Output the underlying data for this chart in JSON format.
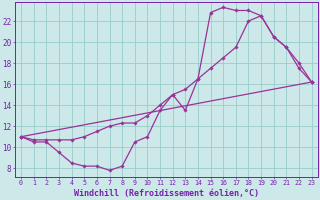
{
  "bg_color": "#cce8e8",
  "grid_color": "#99cccc",
  "line_color": "#993399",
  "marker_color": "#993399",
  "xlabel": "Windchill (Refroidissement éolien,°C)",
  "ylabel_ticks": [
    8,
    10,
    12,
    14,
    16,
    18,
    20,
    22
  ],
  "xlim": [
    -0.5,
    23.5
  ],
  "ylim": [
    7.2,
    23.8
  ],
  "line1_x": [
    0,
    1,
    2,
    3,
    4,
    5,
    6,
    7,
    8,
    9,
    10,
    11,
    12,
    13,
    14,
    15,
    16,
    17,
    18,
    19,
    20,
    21,
    22,
    23
  ],
  "line1_y": [
    11.0,
    10.5,
    10.5,
    9.5,
    8.5,
    8.2,
    8.2,
    7.8,
    8.2,
    10.5,
    11.0,
    13.5,
    15.0,
    13.5,
    16.5,
    22.8,
    23.3,
    23.0,
    23.0,
    22.5,
    20.5,
    19.5,
    17.5,
    16.2
  ],
  "line2_x": [
    0,
    1,
    2,
    3,
    4,
    5,
    6,
    7,
    8,
    9,
    10,
    11,
    12,
    13,
    14,
    15,
    16,
    17,
    18,
    19,
    20,
    21,
    22,
    23
  ],
  "line2_y": [
    11.0,
    10.7,
    10.7,
    10.7,
    10.7,
    11.0,
    11.5,
    12.0,
    12.3,
    12.3,
    13.0,
    14.0,
    15.0,
    15.5,
    16.5,
    17.5,
    18.5,
    19.5,
    22.0,
    22.5,
    20.5,
    19.5,
    18.0,
    16.2
  ],
  "line3_x": [
    0,
    23
  ],
  "line3_y": [
    11.0,
    16.2
  ],
  "xtick_labels": [
    "0",
    "1",
    "2",
    "3",
    "4",
    "5",
    "6",
    "7",
    "8",
    "9",
    "10",
    "11",
    "12",
    "13",
    "14",
    "15",
    "16",
    "17",
    "18",
    "19",
    "20",
    "21",
    "22",
    "23"
  ],
  "xtick_fontsize": 4.8,
  "ytick_fontsize": 5.5,
  "xlabel_fontsize": 6.0,
  "tick_color": "#7722aa",
  "axis_color": "#7722aa"
}
